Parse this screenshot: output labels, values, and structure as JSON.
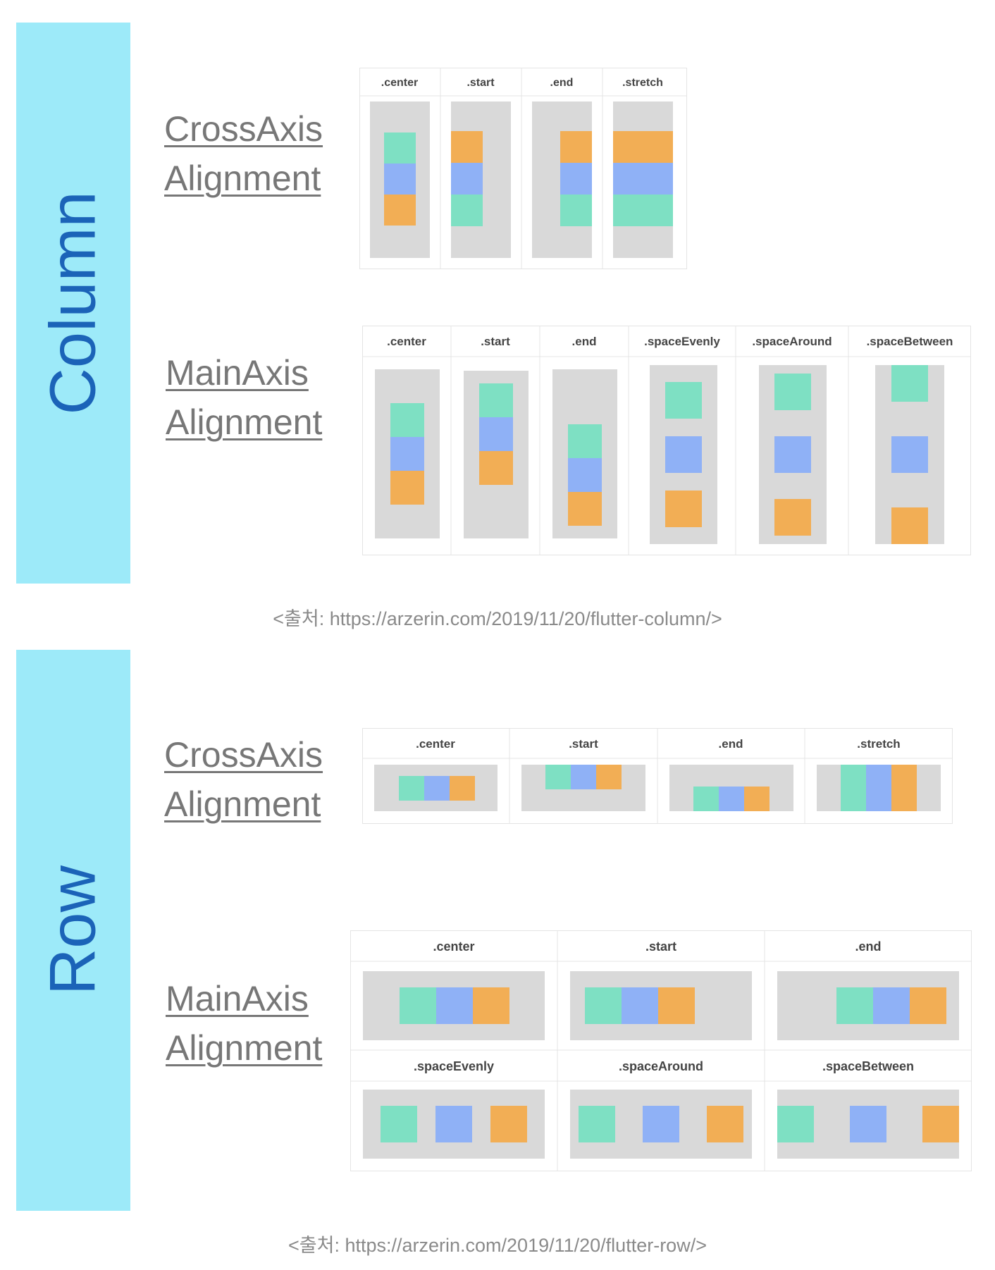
{
  "colors": {
    "sidebar": "#9deaf9",
    "sidebar_text": "#1b63b8",
    "green": "#7ee0c3",
    "blue": "#8fb1f6",
    "orange": "#f2ae55",
    "gray": "#d9d9d9"
  },
  "column_section": {
    "side_title": "Column",
    "cross_label": [
      "CrossAxis",
      "Alignment"
    ],
    "main_label": [
      "MainAxis",
      "Alignment"
    ],
    "cross_headers": [
      ".center",
      ".start",
      ".end",
      ".stretch"
    ],
    "main_headers": [
      ".center",
      ".start",
      ".end",
      ".spaceEvenly",
      ".spaceAround",
      ".spaceBetween"
    ],
    "source": "<출처: https://arzerin.com/2019/11/20/flutter-column/>"
  },
  "row_section": {
    "side_title": "Row",
    "cross_label": [
      "CrossAxis",
      "Alignment"
    ],
    "main_label": [
      "MainAxis",
      "Alignment"
    ],
    "cross_headers": [
      ".center",
      ".start",
      ".end",
      ".stretch"
    ],
    "main_headers_top": [
      ".center",
      ".start",
      ".end"
    ],
    "main_headers_bottom": [
      ".spaceEvenly",
      ".spaceAround",
      ".spaceBetween"
    ],
    "source": "<출처: https://arzerin.com/2019/11/20/flutter-row/>"
  }
}
